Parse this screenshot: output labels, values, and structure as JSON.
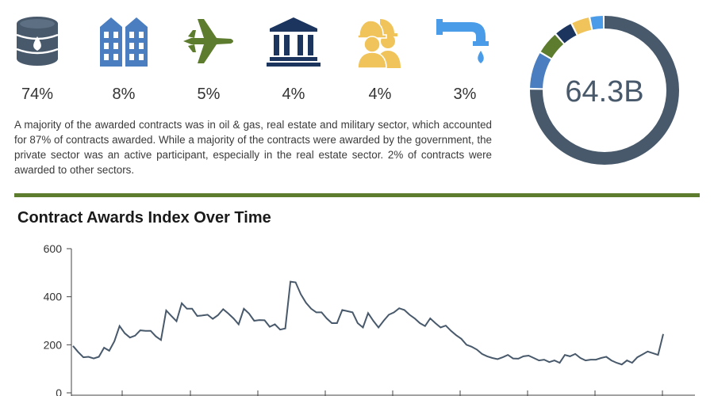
{
  "sectors": [
    {
      "name": "oil-gas",
      "icon": "oil-barrel-icon",
      "percent": "74%",
      "color": "#48596b"
    },
    {
      "name": "real-estate",
      "icon": "buildings-icon",
      "percent": "8%",
      "color": "#4a7ec1"
    },
    {
      "name": "military",
      "icon": "fighter-jet-icon",
      "percent": "5%",
      "color": "#5d7c2e"
    },
    {
      "name": "government",
      "icon": "government-building-icon",
      "percent": "4%",
      "color": "#1c355e"
    },
    {
      "name": "construction",
      "icon": "construction-workers-icon",
      "percent": "4%",
      "color": "#f0c45a"
    },
    {
      "name": "utilities",
      "icon": "water-tap-icon",
      "percent": "3%",
      "color": "#4a9be8"
    }
  ],
  "summary": "A majority of the awarded contracts was in oil & gas, real estate and military sector, which accounted for 87% of contracts awarded. While a majority of the contracts were awarded by the government, the private sector was an active participant, especially in the real estate sector. 2% of contracts were awarded to other sectors.",
  "donut": {
    "center_label": "64.3B",
    "segments": [
      {
        "value": 74,
        "color": "#48596b"
      },
      {
        "value": 8,
        "color": "#4a7ec1"
      },
      {
        "value": 5,
        "color": "#5d7c2e"
      },
      {
        "value": 4,
        "color": "#1c355e"
      },
      {
        "value": 4,
        "color": "#f0c45a"
      },
      {
        "value": 3,
        "color": "#4a9be8"
      }
    ]
  },
  "colors": {
    "divider": "#5d7c2e",
    "line": "#48596b"
  },
  "chart_data": {
    "type": "line",
    "title": "Contract Awards Index Over Time",
    "xlabel": "",
    "ylabel": "",
    "ylim": [
      0,
      600
    ],
    "yticks": [
      0,
      200,
      400,
      600
    ],
    "grid": false,
    "series": [
      {
        "values": [
          195,
          170,
          148,
          150,
          143,
          150,
          188,
          175,
          215,
          278,
          248,
          230,
          238,
          260,
          258,
          258,
          235,
          220,
          343,
          320,
          298,
          373,
          350,
          350,
          320,
          322,
          325,
          308,
          323,
          348,
          330,
          310,
          285,
          350,
          330,
          300,
          303,
          302,
          275,
          285,
          263,
          268,
          463,
          460,
          410,
          375,
          350,
          335,
          335,
          310,
          290,
          290,
          345,
          340,
          335,
          290,
          272,
          332,
          300,
          272,
          300,
          325,
          335,
          352,
          345,
          325,
          310,
          290,
          278,
          310,
          290,
          272,
          280,
          258,
          240,
          225,
          200,
          192,
          180,
          162,
          152,
          145,
          140,
          148,
          158,
          143,
          142,
          152,
          155,
          145,
          135,
          138,
          128,
          135,
          125,
          158,
          152,
          162,
          145,
          135,
          138,
          138,
          145,
          150,
          135,
          125,
          118,
          135,
          125,
          148,
          160,
          172,
          165,
          158,
          245
        ]
      }
    ]
  }
}
